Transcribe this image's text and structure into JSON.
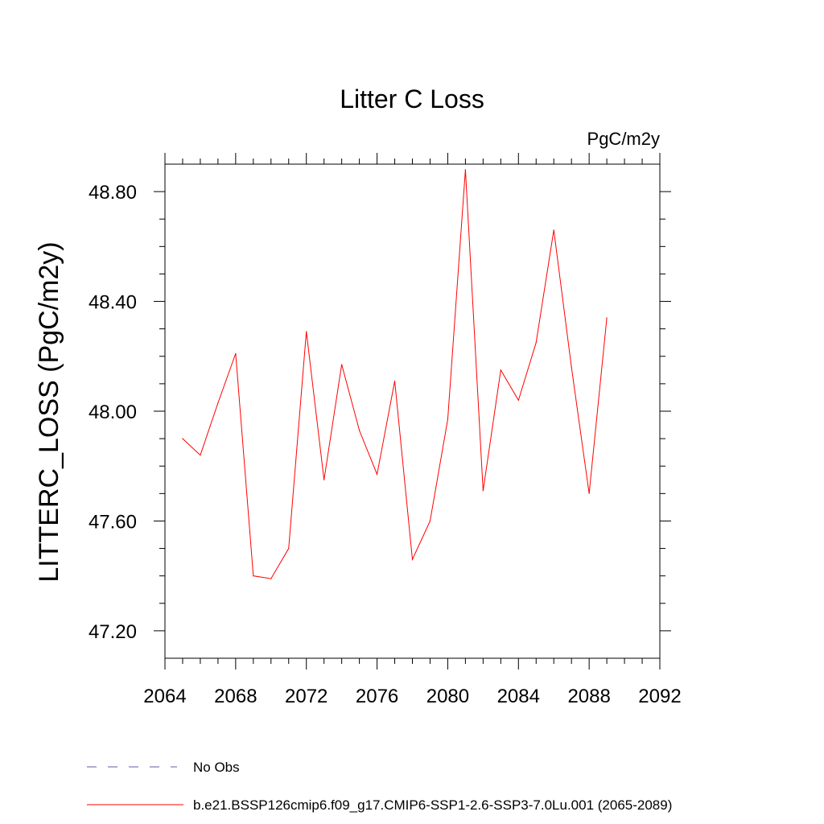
{
  "chart_data": {
    "type": "line",
    "title": "Litter C Loss",
    "units_label": "PgC/m2y",
    "ylabel": "LITTERC_LOSS  (PgC/m2y)",
    "xlabel": "",
    "xlim": [
      2064,
      2092
    ],
    "ylim": [
      47.1,
      48.9
    ],
    "x_ticks": [
      2064,
      2068,
      2072,
      2076,
      2080,
      2084,
      2088,
      2092
    ],
    "x_tick_labels": [
      "2064",
      "2068",
      "2072",
      "2076",
      "2080",
      "2084",
      "2088",
      "2092"
    ],
    "y_ticks": [
      47.2,
      47.6,
      48.0,
      48.4,
      48.8
    ],
    "y_tick_labels": [
      "47.20",
      "47.60",
      "48.00",
      "48.40",
      "48.80"
    ],
    "grid": false,
    "series": [
      {
        "name": "b.e21.BSSP126cmip6.f09_g17.CMIP6-SSP1-2.6-SSP3-7.0Lu.001 (2065-2089)",
        "color": "#ff0000",
        "x": [
          2065,
          2066,
          2067,
          2068,
          2069,
          2070,
          2071,
          2072,
          2073,
          2074,
          2075,
          2076,
          2077,
          2078,
          2079,
          2080,
          2081,
          2082,
          2083,
          2084,
          2085,
          2086,
          2087,
          2088,
          2089
        ],
        "values": [
          47.9,
          47.84,
          48.03,
          48.21,
          47.4,
          47.39,
          47.5,
          48.29,
          47.75,
          48.17,
          47.93,
          47.77,
          48.11,
          47.46,
          47.6,
          47.97,
          48.88,
          47.71,
          48.15,
          48.04,
          48.25,
          48.66,
          48.16,
          47.7,
          48.34
        ]
      }
    ],
    "legend": [
      {
        "label": "No Obs",
        "color": "#6655aa",
        "style": "dashed"
      },
      {
        "label": "b.e21.BSSP126cmip6.f09_g17.CMIP6-SSP1-2.6-SSP3-7.0Lu.001 (2065-2089)",
        "color": "#ff0000",
        "style": "solid"
      }
    ],
    "legend_position": "bottom-left"
  }
}
